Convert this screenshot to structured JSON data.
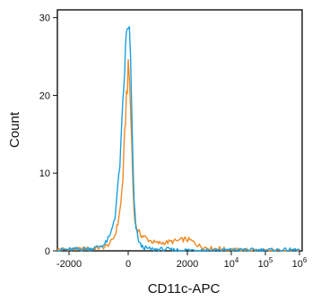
{
  "chart_data": {
    "type": "line",
    "title": "",
    "xlabel": "CD11c-APC",
    "ylabel": "Count",
    "x_scale": "biexponential",
    "xlim": [
      -2700,
      1000000
    ],
    "ylim": [
      0,
      31
    ],
    "grid": false,
    "legend": "none",
    "x_ticks": [
      {
        "value": -2000,
        "label": "-2000"
      },
      {
        "value": 0,
        "label": "0"
      },
      {
        "value": 2000,
        "label": "2000"
      },
      {
        "value": 10000,
        "label": "10",
        "sup": "4"
      },
      {
        "value": 100000,
        "label": "10",
        "sup": "5"
      },
      {
        "value": 1000000,
        "label": "10",
        "sup": "6"
      }
    ],
    "y_ticks": [
      {
        "value": 0,
        "label": "0"
      },
      {
        "value": 10,
        "label": "10"
      },
      {
        "value": 20,
        "label": "20"
      },
      {
        "value": 30,
        "label": "30"
      }
    ],
    "series": [
      {
        "color": "#f08a24",
        "x": [
          -2700,
          -1800,
          -1200,
          -800,
          -600,
          -450,
          -350,
          -250,
          -180,
          -120,
          -60,
          0,
          40,
          80,
          120,
          160,
          200,
          260,
          320,
          380,
          450,
          550,
          650,
          800,
          950,
          1100,
          1300,
          1500,
          1700,
          1900,
          2100,
          2300,
          2600,
          3000,
          3500,
          4200,
          5000,
          6500,
          8000,
          10000,
          14000,
          20000,
          40000,
          100000,
          1000000
        ],
        "y": [
          0.2,
          0.2,
          0.3,
          0.5,
          1.0,
          2.0,
          3.5,
          6.0,
          9.5,
          14.5,
          20.0,
          23.0,
          22.0,
          18.5,
          13.5,
          8.5,
          5.0,
          3.2,
          2.6,
          2.3,
          2.0,
          1.8,
          1.5,
          1.2,
          1.0,
          1.0,
          1.1,
          1.2,
          1.3,
          1.5,
          1.4,
          1.3,
          1.0,
          0.7,
          0.5,
          0.4,
          0.3,
          0.3,
          0.2,
          0.2,
          0.1,
          0.1,
          0.1,
          0.0,
          0.0
        ]
      },
      {
        "color": "#1aa0e0",
        "x": [
          -2700,
          -1800,
          -1200,
          -800,
          -600,
          -450,
          -350,
          -250,
          -180,
          -120,
          -60,
          0,
          40,
          80,
          120,
          160,
          200,
          260,
          320,
          380,
          450,
          550,
          650,
          800,
          950,
          1100,
          1300,
          1500,
          1700,
          1900,
          2100,
          2300,
          2600,
          3000,
          3500,
          4200,
          5000,
          6500,
          8000,
          10000,
          14000,
          20000,
          40000,
          100000,
          1000000
        ],
        "y": [
          0.1,
          0.2,
          0.3,
          0.8,
          2.0,
          4.5,
          8.0,
          13.0,
          18.5,
          23.5,
          27.5,
          29.5,
          28.0,
          24.0,
          17.5,
          11.0,
          6.0,
          3.0,
          1.8,
          1.0,
          0.6,
          0.4,
          0.3,
          0.2,
          0.2,
          0.2,
          0.2,
          0.1,
          0.1,
          0.1,
          0.1,
          0.1,
          0.1,
          0.1,
          0.1,
          0.1,
          0.1,
          0.1,
          0.1,
          0.1,
          0.1,
          0.1,
          0.1,
          0.1,
          0.1
        ]
      }
    ]
  }
}
